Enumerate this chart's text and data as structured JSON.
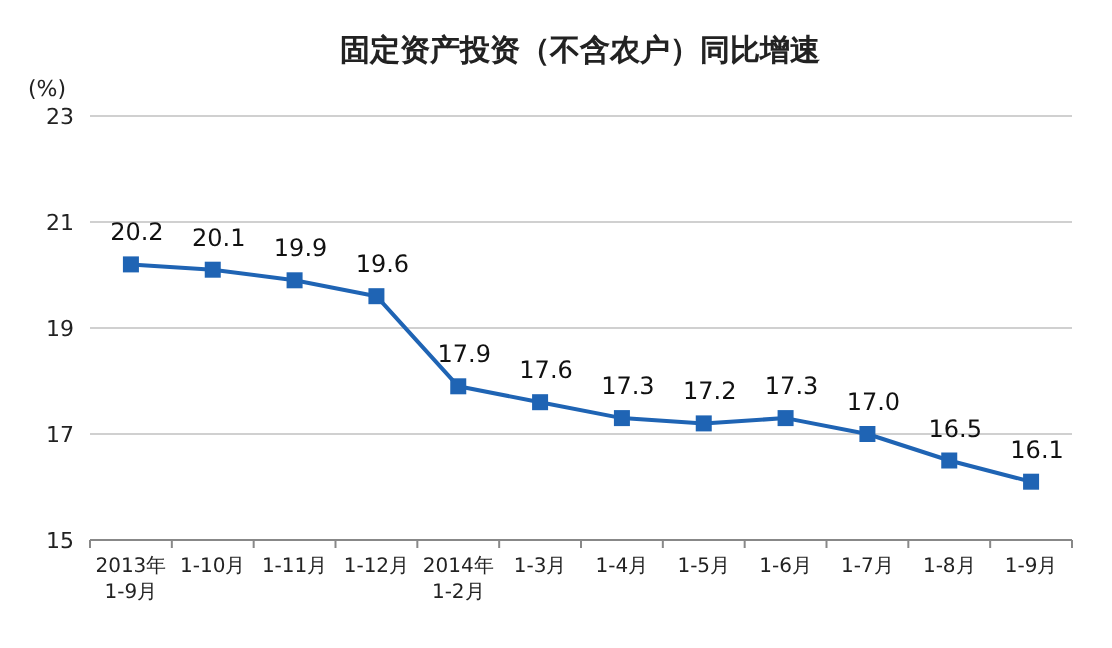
{
  "chart_data": {
    "type": "line",
    "title": "固定资产投资（不含农户）同比增速",
    "ylabel": "(%)",
    "categories": [
      "2013年\n1-9月",
      "1-10月",
      "1-11月",
      "1-12月",
      "2014年\n1-2月",
      "1-3月",
      "1-4月",
      "1-5月",
      "1-6月",
      "1-7月",
      "1-8月",
      "1-9月"
    ],
    "values": [
      20.2,
      20.1,
      19.9,
      19.6,
      17.9,
      17.6,
      17.3,
      17.2,
      17.3,
      17.0,
      16.5,
      16.1
    ],
    "color": "#1f64b4",
    "ylim": [
      15,
      23
    ],
    "yticks": [
      15,
      17,
      19,
      21,
      23
    ],
    "grid": "y",
    "marker": "square",
    "line_style": "solid",
    "value_labels": [
      "20.2",
      "20.1",
      "19.9",
      "19.6",
      "17.9",
      "17.6",
      "17.3",
      "17.2",
      "17.3",
      "17.0",
      "16.5",
      "16.1"
    ]
  }
}
